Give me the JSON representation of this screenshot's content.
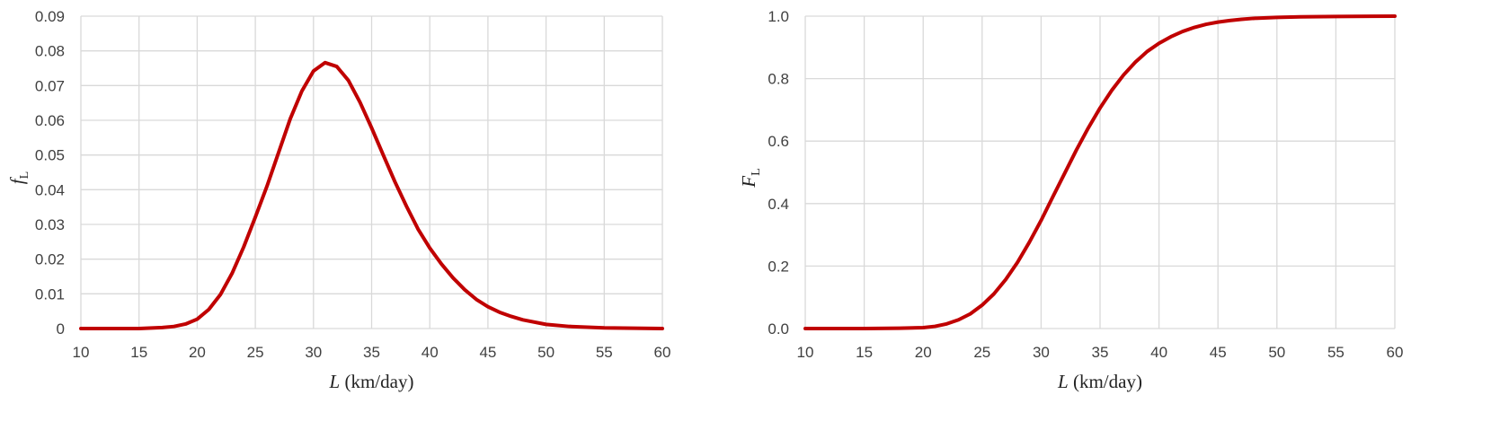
{
  "chart_data": [
    {
      "type": "line",
      "xlabel_var": "L",
      "xlabel_unit": " (km/day)",
      "ylabel_var": "f",
      "ylabel_sub": "L",
      "xlim": [
        10,
        60
      ],
      "ylim": [
        0,
        0.09
      ],
      "xticks": [
        10,
        15,
        20,
        25,
        30,
        35,
        40,
        45,
        50,
        55,
        60
      ],
      "yticks": [
        0,
        0.01,
        0.02,
        0.03,
        0.04,
        0.05,
        0.06,
        0.07,
        0.08,
        0.09
      ],
      "ytick_labels": [
        "0",
        "0.01",
        "0.02",
        "0.03",
        "0.04",
        "0.05",
        "0.06",
        "0.07",
        "0.08",
        "0.09"
      ],
      "grid": true,
      "color": "#c00000",
      "series": [
        {
          "x": [
            10,
            15,
            17,
            18,
            19,
            20,
            21,
            22,
            23,
            24,
            25,
            26,
            27,
            28,
            29,
            30,
            31,
            32,
            33,
            34,
            35,
            36,
            37,
            38,
            39,
            40,
            41,
            42,
            43,
            44,
            45,
            46,
            47,
            48,
            50,
            52,
            55,
            60
          ],
          "y": [
            0,
            0,
            0.0003,
            0.0006,
            0.0013,
            0.0027,
            0.0055,
            0.0098,
            0.0159,
            0.0235,
            0.0321,
            0.041,
            0.0507,
            0.0604,
            0.0684,
            0.0742,
            0.0766,
            0.0755,
            0.0715,
            0.0652,
            0.0578,
            0.05,
            0.0423,
            0.0352,
            0.0286,
            0.0232,
            0.0186,
            0.0146,
            0.0112,
            0.0084,
            0.0063,
            0.0047,
            0.0035,
            0.0025,
            0.0012,
            0.0006,
            0.0002,
            0
          ]
        }
      ]
    },
    {
      "type": "line",
      "xlabel_var": "L",
      "xlabel_unit": " (km/day)",
      "ylabel_var": "F",
      "ylabel_sub": "L",
      "xlim": [
        10,
        60
      ],
      "ylim": [
        0,
        1
      ],
      "xticks": [
        10,
        15,
        20,
        25,
        30,
        35,
        40,
        45,
        50,
        55,
        60
      ],
      "yticks": [
        0,
        0.2,
        0.4,
        0.6,
        0.8,
        1.0
      ],
      "ytick_labels": [
        "0.0",
        "0.2",
        "0.4",
        "0.6",
        "0.8",
        "1.0"
      ],
      "grid": true,
      "color": "#c00000",
      "series": [
        {
          "x": [
            10,
            15,
            18,
            20,
            21,
            22,
            23,
            24,
            25,
            26,
            27,
            28,
            29,
            30,
            31,
            32,
            33,
            34,
            35,
            36,
            37,
            38,
            39,
            40,
            41,
            42,
            43,
            44,
            45,
            46,
            47,
            48,
            50,
            52,
            55,
            60
          ],
          "y": [
            0,
            0,
            0.001,
            0.003,
            0.007,
            0.015,
            0.028,
            0.047,
            0.075,
            0.111,
            0.157,
            0.212,
            0.276,
            0.346,
            0.422,
            0.497,
            0.572,
            0.642,
            0.706,
            0.763,
            0.812,
            0.853,
            0.887,
            0.913,
            0.934,
            0.951,
            0.964,
            0.974,
            0.981,
            0.986,
            0.99,
            0.993,
            0.996,
            0.998,
            0.999,
            1.0
          ]
        }
      ]
    }
  ]
}
